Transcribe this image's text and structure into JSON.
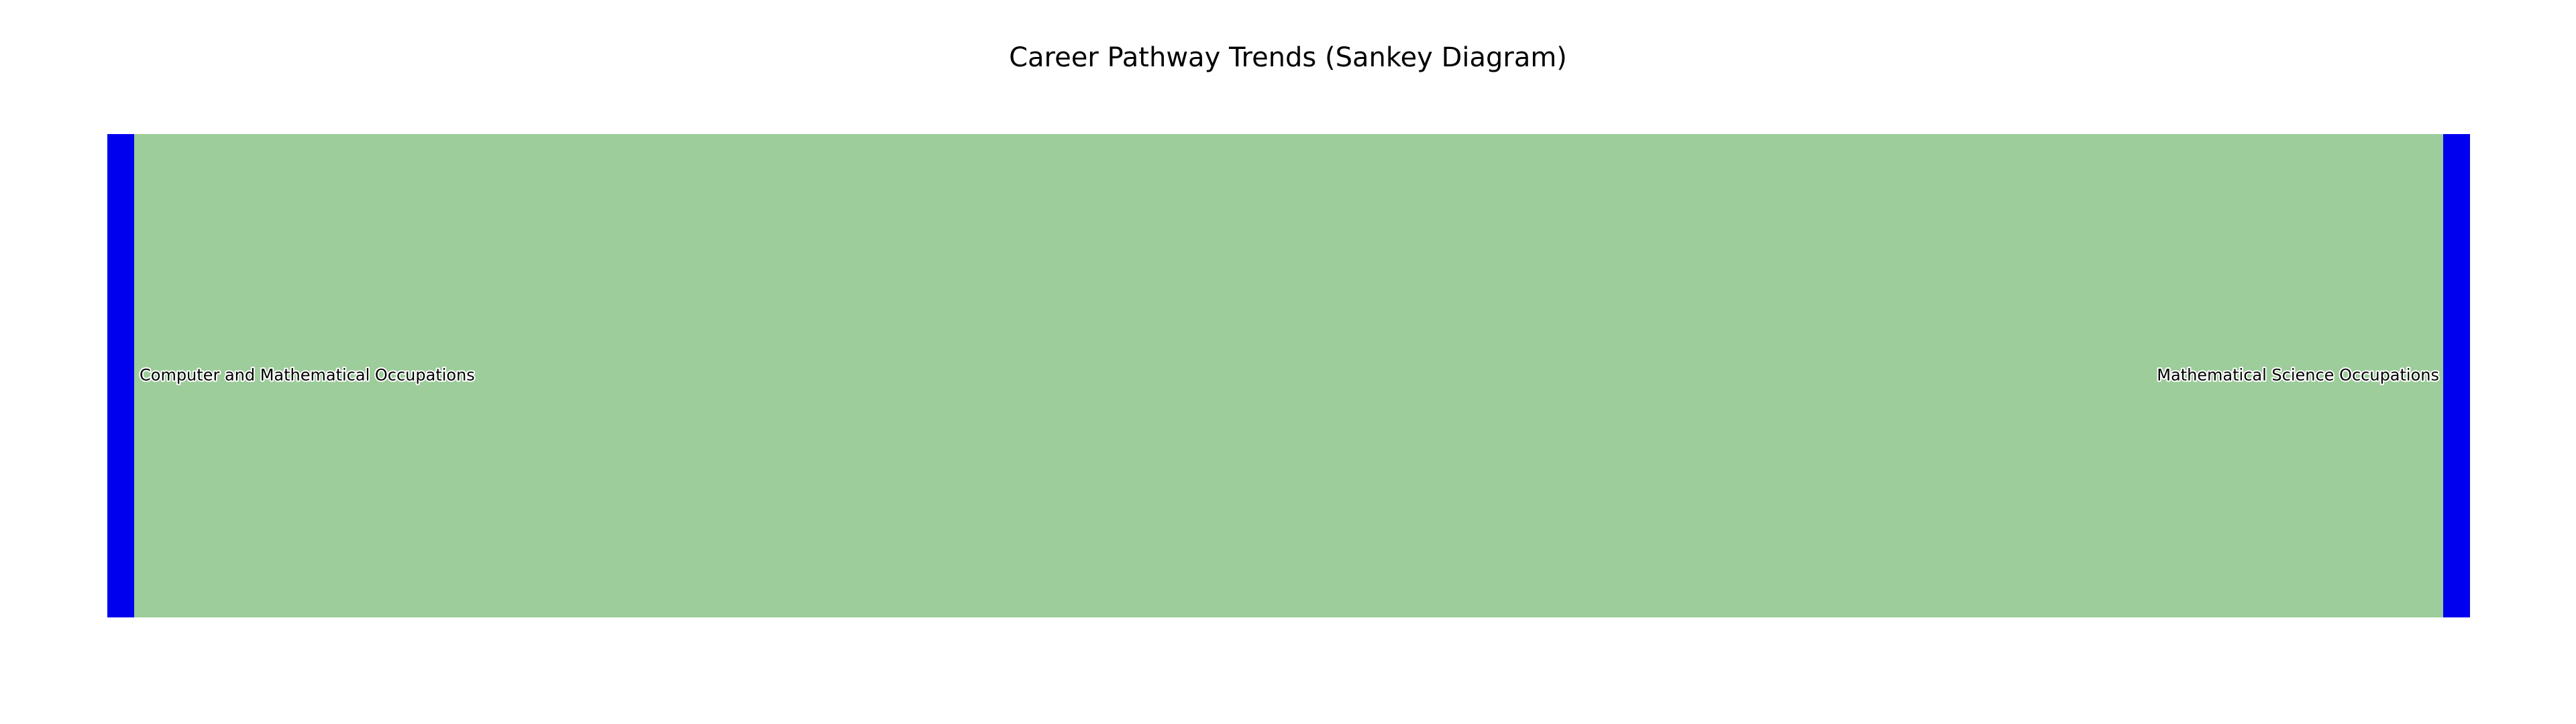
{
  "chart_data": {
    "type": "sankey",
    "title": "Career Pathway Trends (Sankey Diagram)",
    "nodes": [
      {
        "name": "Computer and Mathematical Occupations",
        "column": 0
      },
      {
        "name": "Mathematical Science Occupations",
        "column": 1
      }
    ],
    "links": [
      {
        "source": 0,
        "target": 1,
        "value": 1
      }
    ],
    "colors": {
      "node": "#0000ee",
      "link": "#9ccd9a"
    }
  }
}
